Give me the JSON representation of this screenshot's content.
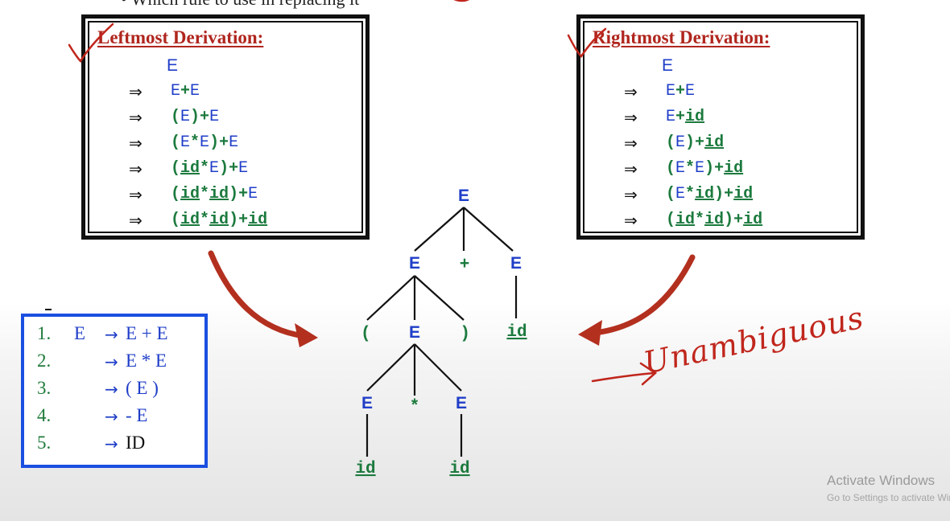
{
  "header_text": "• Which rule to use in replacing it",
  "leftmost": {
    "title": "Leftmost Derivation:",
    "start": "E",
    "arrow": "⇒",
    "steps": [
      [
        {
          "t": "E",
          "c": "E"
        },
        {
          "t": "+",
          "c": "op"
        },
        {
          "t": "E",
          "c": "E"
        }
      ],
      [
        {
          "t": "(",
          "c": "op"
        },
        {
          "t": "E",
          "c": "E"
        },
        {
          "t": ")",
          "c": "op"
        },
        {
          "t": "+",
          "c": "op"
        },
        {
          "t": "E",
          "c": "E"
        }
      ],
      [
        {
          "t": "(",
          "c": "op"
        },
        {
          "t": "E",
          "c": "E"
        },
        {
          "t": "*",
          "c": "op"
        },
        {
          "t": "E",
          "c": "E"
        },
        {
          "t": ")",
          "c": "op"
        },
        {
          "t": "+",
          "c": "op"
        },
        {
          "t": "E",
          "c": "E"
        }
      ],
      [
        {
          "t": "(",
          "c": "op"
        },
        {
          "t": "id",
          "c": "id"
        },
        {
          "t": "*",
          "c": "op"
        },
        {
          "t": "E",
          "c": "E"
        },
        {
          "t": ")",
          "c": "op"
        },
        {
          "t": "+",
          "c": "op"
        },
        {
          "t": "E",
          "c": "E"
        }
      ],
      [
        {
          "t": "(",
          "c": "op"
        },
        {
          "t": "id",
          "c": "id"
        },
        {
          "t": "*",
          "c": "op"
        },
        {
          "t": "id",
          "c": "id"
        },
        {
          "t": ")",
          "c": "op"
        },
        {
          "t": "+",
          "c": "op"
        },
        {
          "t": "E",
          "c": "E"
        }
      ],
      [
        {
          "t": "(",
          "c": "op"
        },
        {
          "t": "id",
          "c": "id"
        },
        {
          "t": "*",
          "c": "op"
        },
        {
          "t": "id",
          "c": "id"
        },
        {
          "t": ")",
          "c": "op"
        },
        {
          "t": "+",
          "c": "op"
        },
        {
          "t": "id",
          "c": "id"
        }
      ]
    ]
  },
  "rightmost": {
    "title": "Rightmost Derivation:",
    "start": "E",
    "arrow": "⇒",
    "steps": [
      [
        {
          "t": "E",
          "c": "E"
        },
        {
          "t": "+",
          "c": "op"
        },
        {
          "t": "E",
          "c": "E"
        }
      ],
      [
        {
          "t": "E",
          "c": "E"
        },
        {
          "t": "+",
          "c": "op"
        },
        {
          "t": "id",
          "c": "id"
        }
      ],
      [
        {
          "t": "(",
          "c": "op"
        },
        {
          "t": "E",
          "c": "E"
        },
        {
          "t": ")",
          "c": "op"
        },
        {
          "t": "+",
          "c": "op"
        },
        {
          "t": "id",
          "c": "id"
        }
      ],
      [
        {
          "t": "(",
          "c": "op"
        },
        {
          "t": "E",
          "c": "E"
        },
        {
          "t": "*",
          "c": "op"
        },
        {
          "t": "E",
          "c": "E"
        },
        {
          "t": ")",
          "c": "op"
        },
        {
          "t": "+",
          "c": "op"
        },
        {
          "t": "id",
          "c": "id"
        }
      ],
      [
        {
          "t": "(",
          "c": "op"
        },
        {
          "t": "E",
          "c": "E"
        },
        {
          "t": "*",
          "c": "op"
        },
        {
          "t": "id",
          "c": "id"
        },
        {
          "t": ")",
          "c": "op"
        },
        {
          "t": "+",
          "c": "op"
        },
        {
          "t": "id",
          "c": "id"
        }
      ],
      [
        {
          "t": "(",
          "c": "op"
        },
        {
          "t": "id",
          "c": "id"
        },
        {
          "t": "*",
          "c": "op"
        },
        {
          "t": "id",
          "c": "id"
        },
        {
          "t": ")",
          "c": "op"
        },
        {
          "t": "+",
          "c": "op"
        },
        {
          "t": "id",
          "c": "id"
        }
      ]
    ]
  },
  "grammar": {
    "lhs": "E",
    "arrow": "→",
    "rules": [
      {
        "num": "1.",
        "rhs": "E + E"
      },
      {
        "num": "2.",
        "rhs": "E * E"
      },
      {
        "num": "3.",
        "rhs": "( E )"
      },
      {
        "num": "4.",
        "rhs": "- E"
      },
      {
        "num": "5.",
        "rhs": "ID"
      }
    ]
  },
  "parse_tree": {
    "nodes": {
      "root": "E",
      "l1_left": "E",
      "l1_plus": "+",
      "l1_right": "E",
      "l2_lparen": "(",
      "l2_mid": "E",
      "l2_rparen": ")",
      "l2_id": "id",
      "l3_left": "E",
      "l3_star": "*",
      "l3_right": "E",
      "l4_left": "id",
      "l4_right": "id"
    }
  },
  "annotation": "Unambiguous",
  "watermark": {
    "line1": "Activate Windows",
    "line2": "Go to Settings to activate Windows."
  },
  "colors": {
    "nonterminal": "#1f3ec8",
    "terminal": "#1c7a3e",
    "title_red": "#b0261e",
    "arrow_red": "#b3301f",
    "grammar_border": "#1a4fe0"
  }
}
